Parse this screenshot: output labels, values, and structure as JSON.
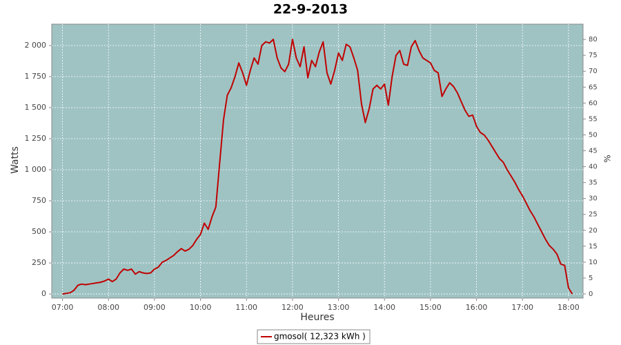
{
  "chart_data": {
    "type": "line",
    "title": "22-9-2013",
    "xlabel": "Heures",
    "ylabel": "Watts",
    "y2label": "%",
    "x": [
      420,
      425,
      430,
      435,
      440,
      445,
      450,
      455,
      460,
      465,
      470,
      475,
      480,
      485,
      490,
      495,
      500,
      505,
      510,
      515,
      520,
      525,
      530,
      535,
      540,
      545,
      550,
      555,
      560,
      565,
      570,
      575,
      580,
      585,
      590,
      595,
      600,
      605,
      610,
      615,
      620,
      625,
      630,
      635,
      640,
      645,
      650,
      655,
      660,
      665,
      670,
      675,
      680,
      685,
      690,
      695,
      700,
      705,
      710,
      715,
      720,
      725,
      730,
      735,
      740,
      745,
      750,
      755,
      760,
      765,
      770,
      775,
      780,
      785,
      790,
      795,
      800,
      805,
      810,
      815,
      820,
      825,
      830,
      835,
      840,
      845,
      850,
      855,
      860,
      865,
      870,
      875,
      880,
      885,
      890,
      895,
      900,
      905,
      910,
      915,
      920,
      925,
      930,
      935,
      940,
      945,
      950,
      955,
      960,
      965,
      970,
      975,
      980,
      985,
      990,
      995,
      1000,
      1005,
      1010,
      1015,
      1020,
      1025,
      1030,
      1035,
      1040,
      1045,
      1050,
      1055,
      1060,
      1065,
      1070,
      1075,
      1080,
      1085
    ],
    "series": [
      {
        "name": "gmosol( 12,323 kWh )",
        "color": "#c00000",
        "values": [
          0,
          5,
          10,
          30,
          70,
          80,
          75,
          80,
          85,
          90,
          95,
          105,
          120,
          100,
          120,
          170,
          200,
          190,
          200,
          160,
          180,
          170,
          165,
          170,
          200,
          215,
          255,
          270,
          290,
          310,
          340,
          365,
          345,
          360,
          390,
          440,
          480,
          570,
          520,
          620,
          700,
          1050,
          1400,
          1600,
          1660,
          1750,
          1860,
          1780,
          1680,
          1800,
          1900,
          1850,
          2000,
          2030,
          2020,
          2050,
          1900,
          1820,
          1790,
          1850,
          2050,
          1900,
          1830,
          1990,
          1740,
          1880,
          1830,
          1950,
          2030,
          1780,
          1690,
          1800,
          1940,
          1880,
          2010,
          1990,
          1900,
          1800,
          1530,
          1380,
          1490,
          1650,
          1680,
          1650,
          1690,
          1520,
          1750,
          1920,
          1960,
          1850,
          1840,
          1990,
          2040,
          1960,
          1900,
          1880,
          1860,
          1800,
          1780,
          1590,
          1650,
          1700,
          1670,
          1620,
          1550,
          1480,
          1430,
          1440,
          1350,
          1300,
          1280,
          1240,
          1190,
          1140,
          1090,
          1060,
          1000,
          950,
          900,
          840,
          790,
          730,
          670,
          620,
          560,
          500,
          440,
          390,
          360,
          320,
          240,
          230,
          50,
          0
        ]
      }
    ],
    "xlim": [
      406,
      1099
    ],
    "xticks": [
      {
        "value": 420,
        "label": "07:00"
      },
      {
        "value": 480,
        "label": "08:00"
      },
      {
        "value": 540,
        "label": "09:00"
      },
      {
        "value": 600,
        "label": "10:00"
      },
      {
        "value": 660,
        "label": "11:00"
      },
      {
        "value": 720,
        "label": "12:00"
      },
      {
        "value": 780,
        "label": "13:00"
      },
      {
        "value": 840,
        "label": "14:00"
      },
      {
        "value": 900,
        "label": "15:00"
      },
      {
        "value": 960,
        "label": "16:00"
      },
      {
        "value": 1020,
        "label": "17:00"
      },
      {
        "value": 1080,
        "label": "18:00"
      }
    ],
    "ylim": [
      -33,
      2172
    ],
    "yticks": [
      0,
      250,
      500,
      750,
      {
        "value": 1000,
        "label": "1 000"
      },
      {
        "value": 1250,
        "label": "1 250"
      },
      {
        "value": 1500,
        "label": "1 500"
      },
      {
        "value": 1750,
        "label": "1 750"
      },
      {
        "value": 2000,
        "label": "2 000"
      }
    ],
    "y2lim": [
      -1.3,
      84.8
    ],
    "y2ticks": [
      0,
      5,
      10,
      15,
      20,
      25,
      30,
      35,
      40,
      45,
      50,
      55,
      60,
      65,
      70,
      75,
      80
    ],
    "grid": true,
    "background": "#9fc3c3",
    "legend": "bottom"
  }
}
